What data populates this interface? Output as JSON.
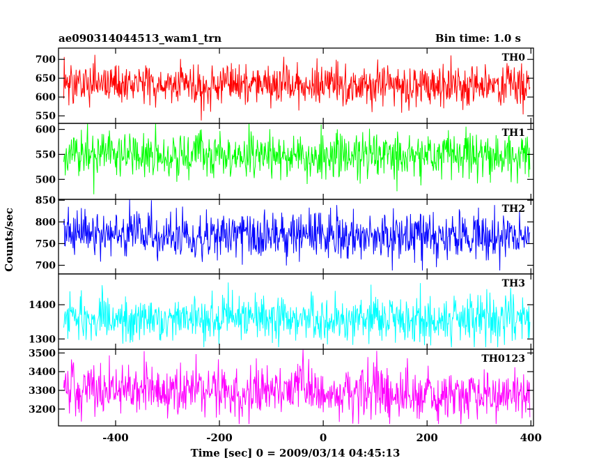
{
  "header": {
    "title": "ae090314044513_wam1_trn",
    "bin_time": "Bin time: 1.0 s"
  },
  "chart_data": {
    "type": "line",
    "xlabel": "Time [sec] 0 = 2009/03/14 04:45:13",
    "ylabel": "Counts/sec",
    "xlim": [
      -510,
      405
    ],
    "xticks": [
      -400,
      -200,
      0,
      200,
      400
    ],
    "x_range": [
      -500,
      398
    ],
    "bin_seconds": 1.0,
    "panels": [
      {
        "name": "TH0",
        "color": "#ff0000",
        "ylim": [
          530,
          730
        ],
        "yticks": [
          550,
          600,
          650,
          700
        ],
        "mean": 630,
        "spread": 28,
        "min": 535,
        "max": 728,
        "trend": [
          [
            -500,
            632
          ],
          [
            398,
            630
          ]
        ]
      },
      {
        "name": "TH1",
        "color": "#00ff00",
        "ylim": [
          460,
          612
        ],
        "yticks": [
          500,
          550,
          600
        ],
        "mean": 548,
        "spread": 22,
        "min": 470,
        "max": 612,
        "trend": [
          [
            -500,
            550
          ],
          [
            398,
            545
          ]
        ]
      },
      {
        "name": "TH2",
        "color": "#0000ff",
        "ylim": [
          680,
          852
        ],
        "yticks": [
          700,
          750,
          800,
          850
        ],
        "mean": 770,
        "spread": 28,
        "min": 688,
        "max": 852,
        "trend": [
          [
            -500,
            772
          ],
          [
            398,
            768
          ]
        ]
      },
      {
        "name": "TH3",
        "color": "#00ffff",
        "ylim": [
          1270,
          1490
        ],
        "yticks": [
          1300,
          1400
        ],
        "mean": 1360,
        "spread": 35,
        "min": 1276,
        "max": 1488,
        "trend": [
          [
            -500,
            1362
          ],
          [
            398,
            1355
          ]
        ]
      },
      {
        "name": "TH0123",
        "color": "#ff00ff",
        "ylim": [
          3110,
          3520
        ],
        "yticks": [
          3200,
          3300,
          3400,
          3500
        ],
        "mean": 3300,
        "spread": 68,
        "min": 3120,
        "max": 3520,
        "trend": [
          [
            -500,
            3310
          ],
          [
            398,
            3270
          ]
        ]
      }
    ]
  }
}
